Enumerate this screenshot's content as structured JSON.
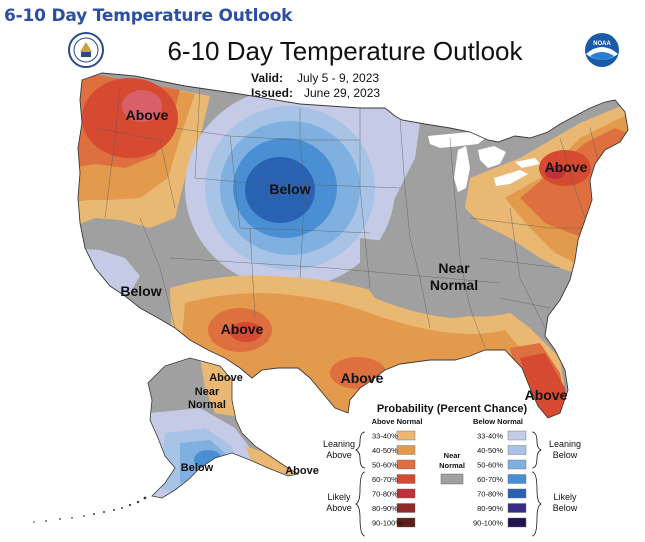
{
  "page_heading": "6-10 Day Temperature Outlook",
  "map": {
    "title": "6-10 Day Temperature Outlook",
    "valid_label": "Valid:",
    "valid_dates": "July 5 - 9, 2023",
    "issued_label": "Issued:",
    "issued_date": "June 29, 2023",
    "logo_right_text": "NOAA",
    "region_labels": {
      "northwest": "Above",
      "north_central": "Below",
      "southwest": "Below",
      "southern_plains": "Above",
      "gulf": "Above",
      "florida": "Above",
      "northeast": "Above",
      "near_normal_1": "Near",
      "near_normal_2": "Normal",
      "alaska_above_north": "Above",
      "alaska_near_1": "Near",
      "alaska_near_2": "Normal",
      "alaska_below": "Below",
      "alaska_above_south": "Above"
    }
  },
  "legend": {
    "title": "Probability (Percent Chance)",
    "above_header": "Above Normal",
    "below_header": "Below Normal",
    "near_header_1": "Near",
    "near_header_2": "Normal",
    "leaning_above_1": "Leaning",
    "leaning_above_2": "Above",
    "likely_above_1": "Likely",
    "likely_above_2": "Above",
    "leaning_below_1": "Leaning",
    "leaning_below_2": "Below",
    "likely_below_1": "Likely",
    "likely_below_2": "Below",
    "above_bins": [
      {
        "label": "33-40%",
        "color": "#e9b872"
      },
      {
        "label": "40-50%",
        "color": "#e39a4d"
      },
      {
        "label": "50-60%",
        "color": "#de7040"
      },
      {
        "label": "60-70%",
        "color": "#d64a32"
      },
      {
        "label": "70-80%",
        "color": "#c0303a"
      },
      {
        "label": "80-90%",
        "color": "#8e2a2a"
      },
      {
        "label": "90-100%",
        "color": "#5a1f1a"
      }
    ],
    "below_bins": [
      {
        "label": "33-40%",
        "color": "#c5cbe6"
      },
      {
        "label": "40-50%",
        "color": "#a7c3e6"
      },
      {
        "label": "50-60%",
        "color": "#7fb0e0"
      },
      {
        "label": "60-70%",
        "color": "#4a8fd4"
      },
      {
        "label": "70-80%",
        "color": "#2a62b3"
      },
      {
        "label": "80-90%",
        "color": "#3a2a8a"
      },
      {
        "label": "90-100%",
        "color": "#24134f"
      }
    ],
    "near_color": "#a0a0a0"
  }
}
